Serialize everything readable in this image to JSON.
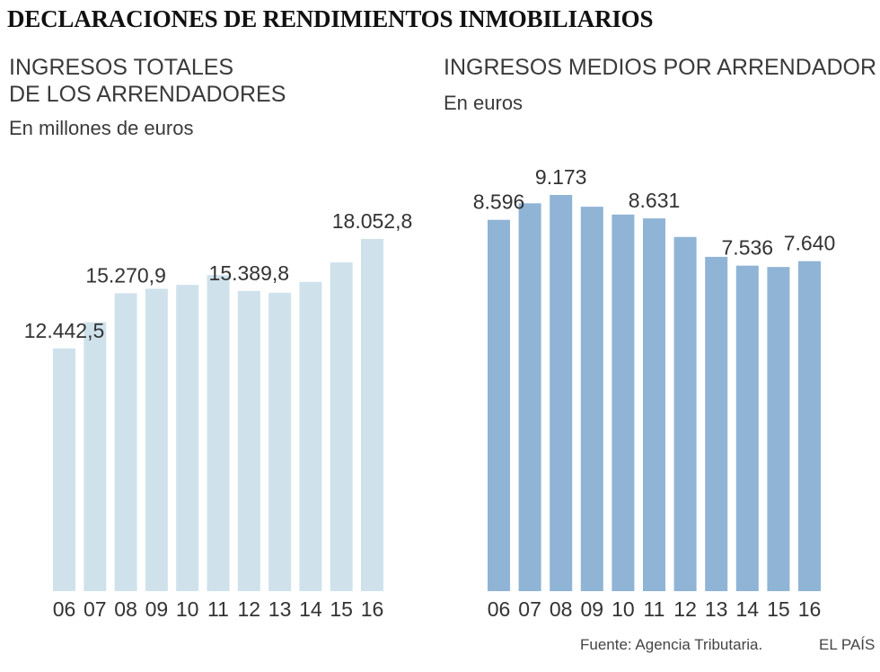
{
  "page_title": "DECLARACIONES DE RENDIMIENTOS INMOBILIARIOS",
  "charts": {
    "left": {
      "title_line1": "INGRESOS TOTALES",
      "title_line2": "DE LOS ARRENDADORES",
      "unit": "En millones de euros"
    },
    "right": {
      "title_line1": "INGRESOS MEDIOS POR ARRENDADOR",
      "unit": "En euros"
    }
  },
  "colors": {
    "left_bars": "#cfe2ec",
    "right_bars": "#8fb4d5",
    "text": "#333333"
  },
  "footer": {
    "source": "Fuente: Agencia Tributaria.",
    "brand": "EL PAÍS"
  },
  "chart_data": [
    {
      "type": "bar",
      "title": "INGRESOS TOTALES DE LOS ARRENDADORES",
      "subtitle": "En millones de euros",
      "categories": [
        "06",
        "07",
        "08",
        "09",
        "10",
        "11",
        "12",
        "13",
        "14",
        "15",
        "16"
      ],
      "values": [
        12442.5,
        13790,
        15270.9,
        15500,
        15700,
        16200,
        15389.8,
        15300,
        15850,
        16850,
        18052.8
      ],
      "data_labels": [
        {
          "index": 0,
          "text": "12.442,5"
        },
        {
          "index": 2,
          "text": "15.270,9"
        },
        {
          "index": 6,
          "text": "15.389,8"
        },
        {
          "index": 10,
          "text": "18.052,8"
        }
      ],
      "ylim": [
        0,
        18052.8
      ],
      "grid": false
    },
    {
      "type": "bar",
      "title": "INGRESOS MEDIOS POR ARRENDADOR",
      "subtitle": "En euros",
      "categories": [
        "06",
        "07",
        "08",
        "09",
        "10",
        "11",
        "12",
        "13",
        "14",
        "15",
        "16"
      ],
      "values": [
        8596,
        8980,
        9173,
        8900,
        8720,
        8631,
        8200,
        7740,
        7536,
        7505,
        7640
      ],
      "data_labels": [
        {
          "index": 0,
          "text": "8.596"
        },
        {
          "index": 2,
          "text": "9.173"
        },
        {
          "index": 5,
          "text": "8.631"
        },
        {
          "index": 8,
          "text": "7.536"
        },
        {
          "index": 10,
          "text": "7.640"
        }
      ],
      "ylim": [
        0,
        9173
      ],
      "grid": false
    }
  ]
}
